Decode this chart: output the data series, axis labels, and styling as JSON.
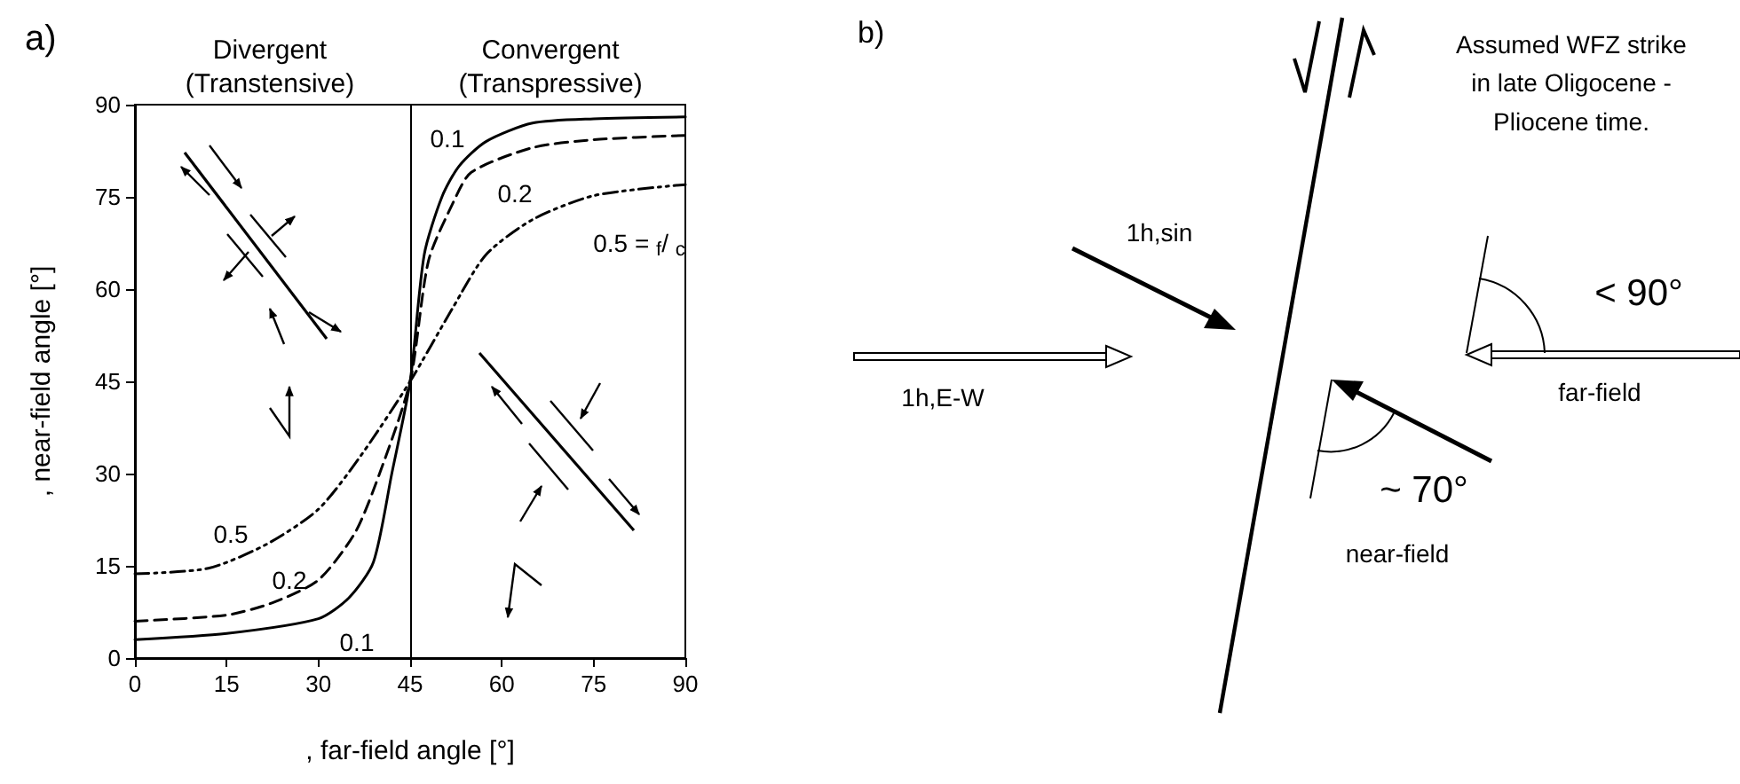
{
  "chart_data": [
    {
      "type": "line",
      "xlabel": ", far-field angle [°]",
      "ylabel": ", near-field angle [°]",
      "xlim": [
        0,
        90
      ],
      "ylim": [
        0,
        90
      ],
      "xticks": [
        0,
        15,
        30,
        45,
        60,
        75,
        90
      ],
      "yticks": [
        0,
        15,
        30,
        45,
        60,
        75,
        90
      ],
      "grid": false,
      "marker": "none",
      "series": [
        {
          "color": "#000000",
          "line_style": "solid",
          "x": [
            0,
            15,
            30,
            35,
            39,
            42,
            45,
            47.3,
            50.2,
            53,
            57.4,
            65,
            75,
            90
          ],
          "values": [
            3,
            4,
            6.4,
            9.8,
            15.6,
            30,
            45,
            65.6,
            75,
            80,
            84,
            87,
            87.7,
            88
          ]
        },
        {
          "color": "#000000",
          "line_style": "dashed",
          "x": [
            0,
            15,
            22.5,
            30,
            36,
            40,
            45,
            48,
            52,
            55,
            65,
            75,
            90
          ],
          "values": [
            6,
            7,
            9,
            12.7,
            20.4,
            30,
            45,
            64.6,
            74,
            79,
            83,
            84.3,
            85
          ]
        },
        {
          "color": "#000000",
          "line_style": "dotted",
          "x": [
            0,
            12,
            21.5,
            30,
            37,
            45,
            52,
            57.4,
            65,
            75,
            90
          ],
          "values": [
            13.7,
            14.6,
            18.5,
            24.2,
            33,
            45,
            57,
            65.6,
            71.3,
            75.2,
            77
          ]
        }
      ],
      "ref_lines": [
        {
          "axis": "x",
          "value": 45,
          "color": "#000000"
        }
      ],
      "annotations": [
        "a)",
        "Divergent\n(Transtensive)",
        "Convergent\n(Transpressive)",
        "0.1",
        "0.1",
        "0.2",
        "0.2",
        "0.5",
        "0.5 = $_{f}$/ $_{c}$"
      ]
    },
    {
      "type": "other",
      "annotations": [
        "b)",
        "Assumed WFZ strike\nin late Oligocene -\nPliocene time.",
        "1h,sin",
        "1h,E-W",
        "< 90°",
        "far-field",
        "~ 70°",
        "near-field"
      ]
    }
  ]
}
